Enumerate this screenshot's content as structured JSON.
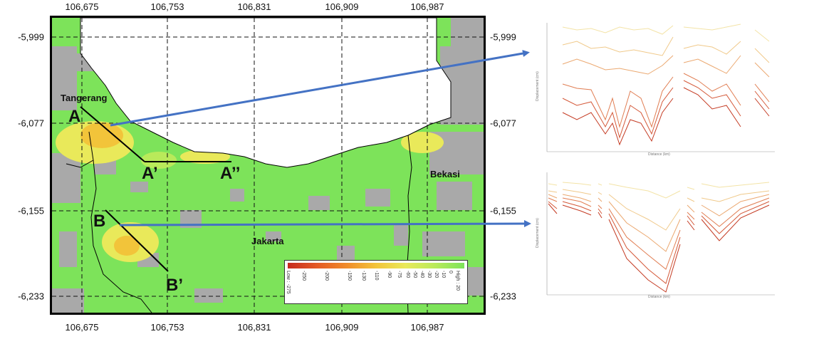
{
  "map": {
    "x_ticks": [
      "106,675",
      "106,753",
      "106,831",
      "106,909",
      "106,987"
    ],
    "y_ticks": [
      "-5,999",
      "-6,077",
      "-6,155",
      "-6,233"
    ],
    "labels": {
      "point_a": "A",
      "point_a_prime": "A’",
      "point_a_double_prime": "A’’",
      "point_b": "B",
      "point_b_prime": "B’",
      "tangerang": "Tangerang",
      "jakarta": "Jakarta",
      "bekasi": "Bekasi"
    },
    "legend": {
      "ticks": [
        "Low : -275",
        "-250",
        "-200",
        "-150",
        "-130",
        "-110",
        "-90",
        "-75",
        "-60",
        "-50",
        "-40",
        "-30",
        "-20",
        "-10",
        "0",
        "High : 20"
      ],
      "colors": [
        "#c62a1e",
        "#e45a25",
        "#f08c2a",
        "#f2c43a",
        "#e9e95a",
        "#b9ea5a",
        "#7de35a"
      ]
    },
    "colors": {
      "land_stable": "#7de35a",
      "no_data": "#a9a9a9",
      "sea": "#ffffff",
      "subsidence_high": "#f2c43a",
      "arrow": "#4472c4"
    }
  },
  "profiles": {
    "top": {
      "x_label": "Distance (km)",
      "y_label": "Displacement (cm)"
    },
    "bottom": {
      "x_label": "Distance (km)",
      "y_label": "Displacement (cm)"
    }
  }
}
